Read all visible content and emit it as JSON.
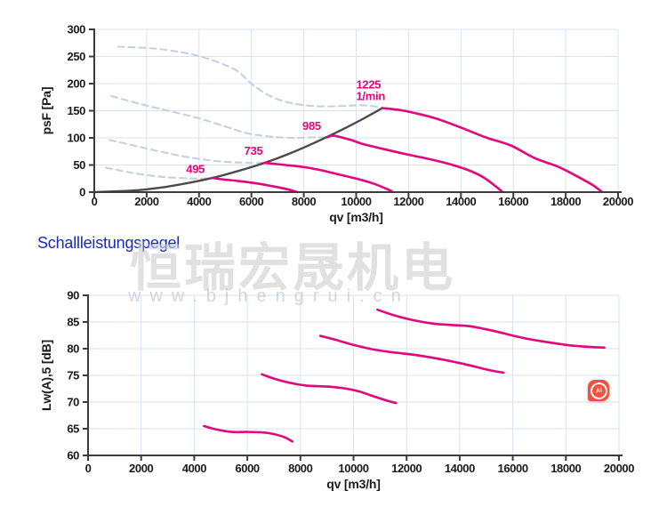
{
  "heading": {
    "text": "Schallleistungspegel",
    "color": "#1a2ab5"
  },
  "watermark": {
    "cn": "恒瑞宏晟机电",
    "url": "www.bjhengrui.cn"
  },
  "ai_badge": {
    "label": "AI"
  },
  "colors": {
    "magenta": "#e2077c",
    "system_curve_gray": "#4a4a4a",
    "dashed_curve": "#c4d1e1",
    "grid": "#d9e2f0",
    "axis": "#3c3c3c",
    "heading_blue": "#1a2ab5",
    "ai_badge_red": "#f5503a",
    "watermark_gray": "#cfcfcf"
  },
  "chart_data": [
    {
      "type": "line",
      "title": "",
      "xlabel": "qv [m3/h]",
      "ylabel": "psF [Pa]",
      "xlim": [
        0,
        20000
      ],
      "ylim": [
        0,
        300
      ],
      "xticks": [
        0,
        2000,
        4000,
        6000,
        8000,
        10000,
        12000,
        14000,
        16000,
        18000,
        20000
      ],
      "yticks": [
        0,
        50,
        100,
        150,
        200,
        250,
        300
      ],
      "grid": true,
      "legend": "none",
      "series": [
        {
          "name": "1225 1/min fan curve (throttled region)",
          "style": "dashed",
          "points": [
            [
              900,
              268
            ],
            [
              2200,
              265
            ],
            [
              3300,
              258
            ],
            [
              4200,
              248
            ],
            [
              5000,
              234
            ],
            [
              5500,
              222
            ],
            [
              6000,
              200
            ],
            [
              6600,
              180
            ],
            [
              7200,
              168
            ],
            [
              7900,
              161
            ],
            [
              8700,
              158
            ],
            [
              9600,
              159
            ],
            [
              10300,
              160
            ],
            [
              11000,
              156
            ]
          ]
        },
        {
          "name": "985 1/min fan curve (throttled region)",
          "style": "dashed",
          "points": [
            [
              650,
              177
            ],
            [
              1800,
              162
            ],
            [
              3000,
              148
            ],
            [
              4000,
              136
            ],
            [
              5000,
              121
            ],
            [
              5800,
              109
            ],
            [
              6600,
              103
            ],
            [
              7500,
              100
            ],
            [
              8300,
              101
            ],
            [
              8900,
              101
            ]
          ]
        },
        {
          "name": "735 1/min fan curve (throttled region)",
          "style": "dashed",
          "points": [
            [
              580,
              96
            ],
            [
              1500,
              86
            ],
            [
              2500,
              75
            ],
            [
              3500,
              65
            ],
            [
              4500,
              58
            ],
            [
              5300,
              55
            ],
            [
              6000,
              54
            ],
            [
              6500,
              54
            ]
          ]
        },
        {
          "name": "495 1/min fan curve (throttled region)",
          "style": "dashed",
          "points": [
            [
              440,
              45
            ],
            [
              1400,
              36
            ],
            [
              2400,
              29
            ],
            [
              3300,
              26
            ],
            [
              4000,
              25
            ],
            [
              4500,
              26
            ]
          ]
        },
        {
          "name": "system resistance curve",
          "style": "system",
          "points": [
            [
              0,
              0
            ],
            [
              1500,
              3
            ],
            [
              2500,
              8
            ],
            [
              3500,
              16
            ],
            [
              4500,
              26
            ],
            [
              5500,
              39
            ],
            [
              6500,
              54
            ],
            [
              7500,
              72
            ],
            [
              8500,
              93
            ],
            [
              9500,
              116
            ],
            [
              10300,
              136
            ],
            [
              11000,
              155
            ]
          ]
        },
        {
          "name": "495 1/min operating range",
          "style": "solid",
          "points": [
            [
              4500,
              26
            ],
            [
              5000,
              23
            ],
            [
              5600,
              20
            ],
            [
              6200,
              16
            ],
            [
              6800,
              11
            ],
            [
              7300,
              6
            ],
            [
              7700,
              1
            ]
          ]
        },
        {
          "name": "735 1/min operating range",
          "style": "solid",
          "points": [
            [
              6500,
              54
            ],
            [
              7300,
              50
            ],
            [
              8000,
              46
            ],
            [
              8700,
              40
            ],
            [
              9300,
              33
            ],
            [
              10000,
              25
            ],
            [
              10700,
              15
            ],
            [
              11350,
              2
            ]
          ]
        },
        {
          "name": "985 1/min operating range",
          "style": "solid",
          "points": [
            [
              8900,
              101
            ],
            [
              9150,
              104
            ],
            [
              9800,
              96
            ],
            [
              10300,
              88
            ],
            [
              11000,
              80
            ],
            [
              11800,
              71
            ],
            [
              12500,
              64
            ],
            [
              13300,
              55
            ],
            [
              14200,
              42
            ],
            [
              14900,
              26
            ],
            [
              15550,
              2
            ]
          ]
        },
        {
          "name": "1225 1/min operating range",
          "style": "solid",
          "points": [
            [
              11000,
              155
            ],
            [
              11700,
              151
            ],
            [
              12400,
              144
            ],
            [
              13100,
              135
            ],
            [
              14000,
              119
            ],
            [
              15000,
              100
            ],
            [
              15900,
              86
            ],
            [
              16800,
              63
            ],
            [
              17700,
              47
            ],
            [
              18400,
              30
            ],
            [
              19000,
              14
            ],
            [
              19370,
              1
            ]
          ]
        }
      ],
      "annotations": [
        {
          "text": "495",
          "x": 3860,
          "y": 43,
          "anchor": "middle"
        },
        {
          "text": "735",
          "x": 6080,
          "y": 76,
          "anchor": "middle"
        },
        {
          "text": "985",
          "x": 8300,
          "y": 122,
          "anchor": "middle"
        },
        {
          "text": "1225",
          "x": 10000,
          "y": 198,
          "anchor": "start"
        },
        {
          "text": "1/min",
          "x": 10000,
          "y": 177,
          "anchor": "start"
        }
      ]
    },
    {
      "type": "line",
      "title": "",
      "xlabel": "qv [m3/h]",
      "ylabel": "Lw(A),5 [dB]",
      "xlim": [
        0,
        20000
      ],
      "ylim": [
        60,
        90
      ],
      "xticks": [
        0,
        2000,
        4000,
        6000,
        8000,
        10000,
        12000,
        14000,
        16000,
        18000,
        20000
      ],
      "yticks": [
        60,
        65,
        70,
        75,
        80,
        85,
        90
      ],
      "grid": true,
      "legend": "none",
      "series": [
        {
          "name": "495 1/min sound power level",
          "style": "solid",
          "points": [
            [
              4370,
              65.5
            ],
            [
              4800,
              64.9
            ],
            [
              5400,
              64.4
            ],
            [
              6000,
              64.4
            ],
            [
              6600,
              64.3
            ],
            [
              7000,
              64.0
            ],
            [
              7400,
              63.4
            ],
            [
              7700,
              62.6
            ]
          ]
        },
        {
          "name": "735 1/min sound power level",
          "style": "solid",
          "points": [
            [
              6550,
              75.2
            ],
            [
              7000,
              74.4
            ],
            [
              7600,
              73.6
            ],
            [
              8200,
              73.1
            ],
            [
              9000,
              72.9
            ],
            [
              9600,
              72.6
            ],
            [
              10200,
              72.0
            ],
            [
              10800,
              71.0
            ],
            [
              11300,
              70.2
            ],
            [
              11600,
              69.8
            ]
          ]
        },
        {
          "name": "985 1/min sound power level",
          "style": "solid",
          "points": [
            [
              8750,
              82.4
            ],
            [
              9300,
              81.7
            ],
            [
              10000,
              80.7
            ],
            [
              10700,
              79.9
            ],
            [
              11500,
              79.3
            ],
            [
              12200,
              78.9
            ],
            [
              13100,
              78.2
            ],
            [
              14100,
              77.2
            ],
            [
              15100,
              76.0
            ],
            [
              15650,
              75.5
            ]
          ]
        },
        {
          "name": "1225 1/min sound power level",
          "style": "solid",
          "points": [
            [
              10900,
              87.3
            ],
            [
              11500,
              86.3
            ],
            [
              12200,
              85.4
            ],
            [
              13000,
              84.7
            ],
            [
              13800,
              84.4
            ],
            [
              14400,
              84.2
            ],
            [
              15300,
              83.3
            ],
            [
              16300,
              82.1
            ],
            [
              17200,
              81.3
            ],
            [
              18200,
              80.6
            ],
            [
              19000,
              80.3
            ],
            [
              19450,
              80.2
            ]
          ]
        }
      ],
      "annotations": []
    }
  ]
}
